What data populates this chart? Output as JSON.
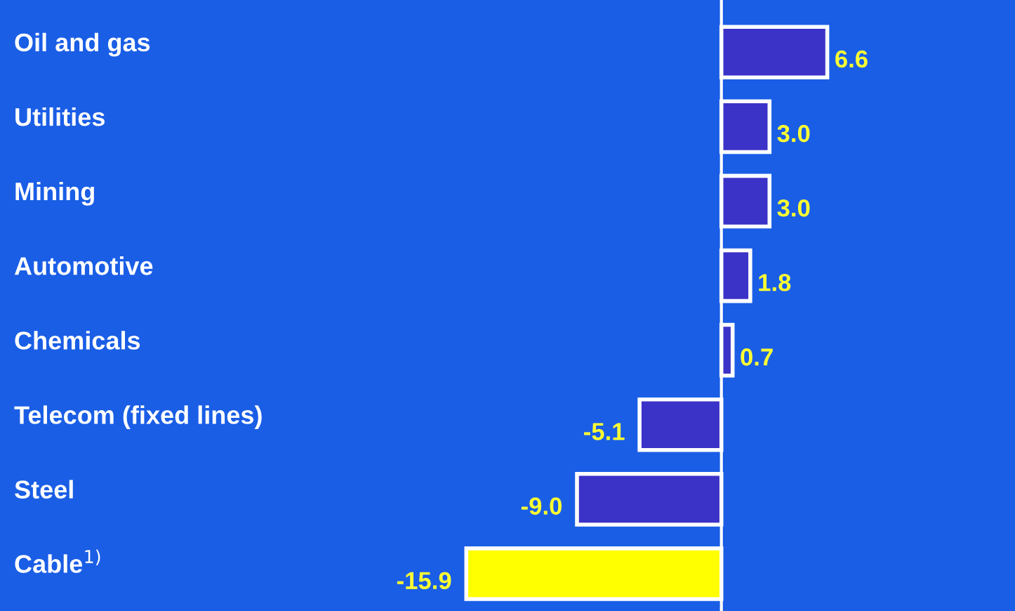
{
  "chart_data": {
    "type": "bar",
    "orientation": "horizontal",
    "categories": [
      "Oil and gas",
      "Utilities",
      "Mining",
      "Automotive",
      "Chemicals",
      "Telecom (fixed lines)",
      "Steel",
      "Cable$^{1)}$"
    ],
    "values": [
      6.6,
      3.0,
      3.0,
      1.8,
      0.7,
      -5.1,
      -9.0,
      -15.9
    ],
    "colors": [
      "#3b32c8",
      "#3b32c8",
      "#3b32c8",
      "#3b32c8",
      "#3b32c8",
      "#3b32c8",
      "#3b32c8",
      "#ffff00"
    ],
    "value_labels": [
      "6.6",
      "3.0",
      "3.0",
      "1.8",
      "0.7",
      "-5.1",
      "-9.0",
      "-15.9"
    ],
    "grid": false,
    "legend": false
  }
}
